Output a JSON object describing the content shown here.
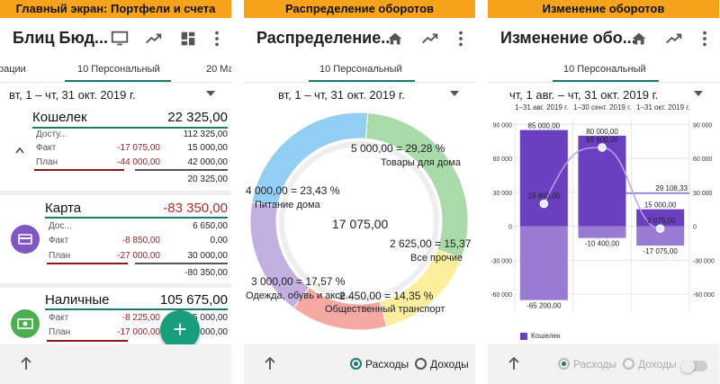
{
  "screen1": {
    "caption": "Главный экран: Портфели и счета",
    "title": "Блиц Бюд...",
    "tabs": [
      "рации",
      "10 Персональный",
      "20 Ма"
    ],
    "date": "вт, 1 – чт, 31 окт. 2019 г.",
    "koshelek": {
      "name": "Кошелек",
      "total": "22 325,00",
      "avail_label": "Досту...",
      "avail": "112 325,00",
      "fact_label": "Факт",
      "fact_a": "-17 075,00",
      "fact_b": "15 000,00",
      "plan_label": "План",
      "plan_a": "-44 000,00",
      "plan_b": "42 000,00",
      "sum": "20 325,00"
    },
    "karta": {
      "name": "Карта",
      "total": "-83 350,00",
      "avail_label": "Дос...",
      "avail": "6 650,00",
      "fact_label": "Факт",
      "fact_a": "-8 850,00",
      "fact_b": "0,00",
      "plan_label": "План",
      "plan_a": "-27 000,00",
      "plan_b": "30 000,00",
      "sum": "-80 350,00"
    },
    "nal": {
      "name": "Наличные",
      "total": "105 675,00",
      "fact_label": "Факт",
      "fact_a": "-8 225,00",
      "fact_b": "15 000,00",
      "plan_label": "План",
      "plan_a": "-17 000,00",
      "plan_b": "20 000,00"
    },
    "fab": "+"
  },
  "screen2": {
    "caption": "Распределение оборотов",
    "title": "Распределение...",
    "tab": "10 Персональный",
    "date": "вт, 1 – чт, 31 окт. 2019 г.",
    "center": "17 075,00",
    "radio1": "Расходы",
    "radio2": "Доходы",
    "chart_data": {
      "type": "pie",
      "center_value": "17 075,00",
      "slices": [
        {
          "label": "Товары для дома",
          "value": 5000,
          "text": "5 000,00 = 29,28 %",
          "color": "#a8dba9"
        },
        {
          "label": "Все прочие",
          "value": 2625,
          "text": "2 625,00 = 15,37",
          "color": "#fcee9c"
        },
        {
          "label": "Общественный транспорт",
          "value": 2450,
          "text": "2 450,00 = 14,35 %",
          "color": "#f6a9a3"
        },
        {
          "label": "Одежда, обувь и аксе...",
          "value": 3000,
          "text": "3 000,00 = 17,57 %",
          "color": "#c2b0e0"
        },
        {
          "label": "Питание дома",
          "value": 4000,
          "text": "4 000,00 = 23,43 %",
          "color": "#92cff3"
        }
      ]
    }
  },
  "screen3": {
    "caption": "Изменение оборотов",
    "title": "Изменение обо...",
    "tab": "10 Персональный",
    "date": "чт, 1 авг. – чт, 31 окт. 2019 г.",
    "periods": [
      "1–31 авг. 2019 г.",
      "1–30 сент. 2019 г.",
      "1–31 окт. 2019 г."
    ],
    "legend": "Кошелек",
    "radio1": "Расходы",
    "radio2": "Доходы",
    "chart_data": {
      "type": "bar",
      "categories": [
        "1–31 авг. 2019 г.",
        "1–30 сент. 2019 г.",
        "1–31 окт. 2019 г."
      ],
      "series": [
        {
          "name": "Кошелек",
          "income": [
            85000,
            80000,
            15000
          ],
          "expense": [
            -65200,
            -10400,
            -17075
          ],
          "balance": [
            19800,
            69600,
            -2075
          ]
        }
      ],
      "income_labels": [
        "85 000,00",
        "80 000,00",
        "15 000,00"
      ],
      "expense_labels": [
        "-65 200,00",
        "-10 400,00",
        "-17 075,00"
      ],
      "balance_labels": [
        "19 800,00",
        "69 600,00",
        "-2 075,00"
      ],
      "ref_label": "29 108,33",
      "ref_value": 29108.33,
      "yticks": [
        "90 000",
        "60 000",
        "30 000",
        "0",
        "-30 000",
        "-60 000"
      ],
      "ytick_values": [
        90000,
        60000,
        30000,
        0,
        -30000,
        -60000
      ],
      "ylim": [
        -75000,
        95000
      ]
    }
  }
}
